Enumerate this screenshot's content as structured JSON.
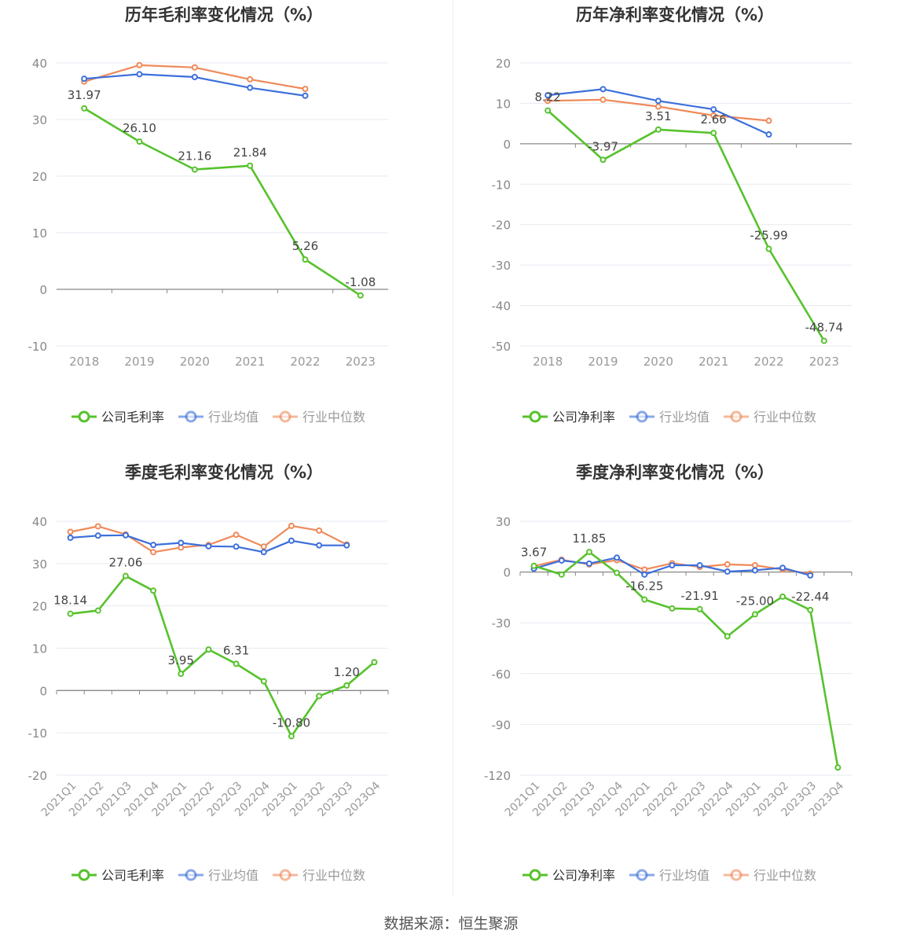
{
  "source_text": "数据来源：恒生聚源",
  "legend_colors": {
    "company": "#57c22d",
    "avg": "#3c6fdc",
    "median": "#ef8a5a"
  },
  "chart_data": [
    {
      "type": "line",
      "title": "历年毛利率变化情况（%）",
      "categories": [
        "2018",
        "2019",
        "2020",
        "2021",
        "2022",
        "2023"
      ],
      "ylim": [
        -10,
        40
      ],
      "yticks": [
        40,
        30,
        20,
        10,
        0,
        -10
      ],
      "legend_position": "bottom",
      "grid": true,
      "series": [
        {
          "name": "公司毛利率",
          "values": [
            31.97,
            26.1,
            21.16,
            21.84,
            5.26,
            -1.08
          ],
          "labels": [
            "31.97",
            "26.10",
            "21.16",
            "21.84",
            "5.26",
            "-1.08"
          ]
        },
        {
          "name": "行业均值",
          "values": [
            37.2,
            38.0,
            37.5,
            35.6,
            34.2,
            null
          ]
        },
        {
          "name": "行业中位数",
          "values": [
            36.7,
            39.6,
            39.2,
            37.1,
            35.4,
            null
          ]
        }
      ]
    },
    {
      "type": "line",
      "title": "历年净利率变化情况（%）",
      "categories": [
        "2018",
        "2019",
        "2020",
        "2021",
        "2022",
        "2023"
      ],
      "ylim": [
        -50,
        20
      ],
      "yticks": [
        20,
        10,
        0,
        -10,
        -20,
        -30,
        -40,
        -50
      ],
      "legend_position": "bottom",
      "grid": true,
      "series": [
        {
          "name": "公司净利率",
          "values": [
            8.22,
            -3.97,
            3.51,
            2.66,
            -25.99,
            -48.74
          ],
          "labels": [
            "8.22",
            "-3.97",
            "3.51",
            "2.66",
            "-25.99",
            "-48.74"
          ]
        },
        {
          "name": "行业均值",
          "values": [
            12.0,
            13.5,
            10.6,
            8.5,
            2.3,
            null
          ]
        },
        {
          "name": "行业中位数",
          "values": [
            10.6,
            10.9,
            9.2,
            7.0,
            5.7,
            null
          ]
        }
      ]
    },
    {
      "type": "line",
      "title": "季度毛利率变化情况（%）",
      "categories": [
        "2021Q1",
        "2021Q2",
        "2021Q3",
        "2021Q4",
        "2022Q1",
        "2022Q2",
        "2022Q3",
        "2022Q4",
        "2023Q1",
        "2023Q2",
        "2023Q3",
        "2023Q4"
      ],
      "ylim": [
        -20,
        40
      ],
      "yticks": [
        40,
        30,
        20,
        10,
        0,
        -10,
        -20
      ],
      "legend_position": "bottom",
      "grid": true,
      "rotate_xlabels": true,
      "series": [
        {
          "name": "公司毛利率",
          "values": [
            18.14,
            18.9,
            27.06,
            23.6,
            3.95,
            9.7,
            6.31,
            2.2,
            -10.8,
            -1.3,
            1.2,
            6.7
          ],
          "labels": [
            "18.14",
            "",
            "27.06",
            "",
            "3.95",
            "",
            "6.31",
            "",
            "-10.80",
            "",
            "1.20",
            ""
          ]
        },
        {
          "name": "行业均值",
          "values": [
            36.1,
            36.6,
            36.7,
            34.4,
            34.9,
            34.1,
            34.0,
            32.7,
            35.4,
            34.3,
            34.3,
            null
          ]
        },
        {
          "name": "行业中位数",
          "values": [
            37.5,
            38.8,
            36.9,
            32.7,
            33.8,
            34.4,
            36.8,
            34.0,
            38.9,
            37.8,
            34.5,
            null
          ]
        }
      ]
    },
    {
      "type": "line",
      "title": "季度净利率变化情况（%）",
      "categories": [
        "2021Q1",
        "2021Q2",
        "2021Q3",
        "2021Q4",
        "2022Q1",
        "2022Q2",
        "2022Q3",
        "2022Q4",
        "2023Q1",
        "2023Q2",
        "2023Q3",
        "2023Q4"
      ],
      "ylim": [
        -120,
        30
      ],
      "yticks": [
        30,
        0,
        -30,
        -60,
        -90,
        -120
      ],
      "legend_position": "bottom",
      "grid": true,
      "rotate_xlabels": true,
      "series": [
        {
          "name": "公司净利率",
          "values": [
            3.67,
            -1.5,
            11.85,
            -0.5,
            -16.25,
            -21.5,
            -21.91,
            -38.0,
            -25.0,
            -14.5,
            -22.44,
            -115.5
          ],
          "labels": [
            "3.67",
            "",
            "11.85",
            "",
            "-16.25",
            "",
            "-21.91",
            "",
            "-25.00",
            "",
            "-22.44",
            ""
          ]
        },
        {
          "name": "行业均值",
          "values": [
            2.0,
            6.8,
            5.0,
            8.5,
            -1.5,
            4.0,
            4.0,
            0.3,
            1.0,
            2.5,
            -2.0,
            null
          ]
        },
        {
          "name": "行业中位数",
          "values": [
            3.5,
            7.3,
            4.5,
            7.0,
            1.5,
            5.2,
            3.0,
            4.5,
            4.0,
            1.5,
            -1.0,
            null
          ]
        }
      ]
    }
  ]
}
